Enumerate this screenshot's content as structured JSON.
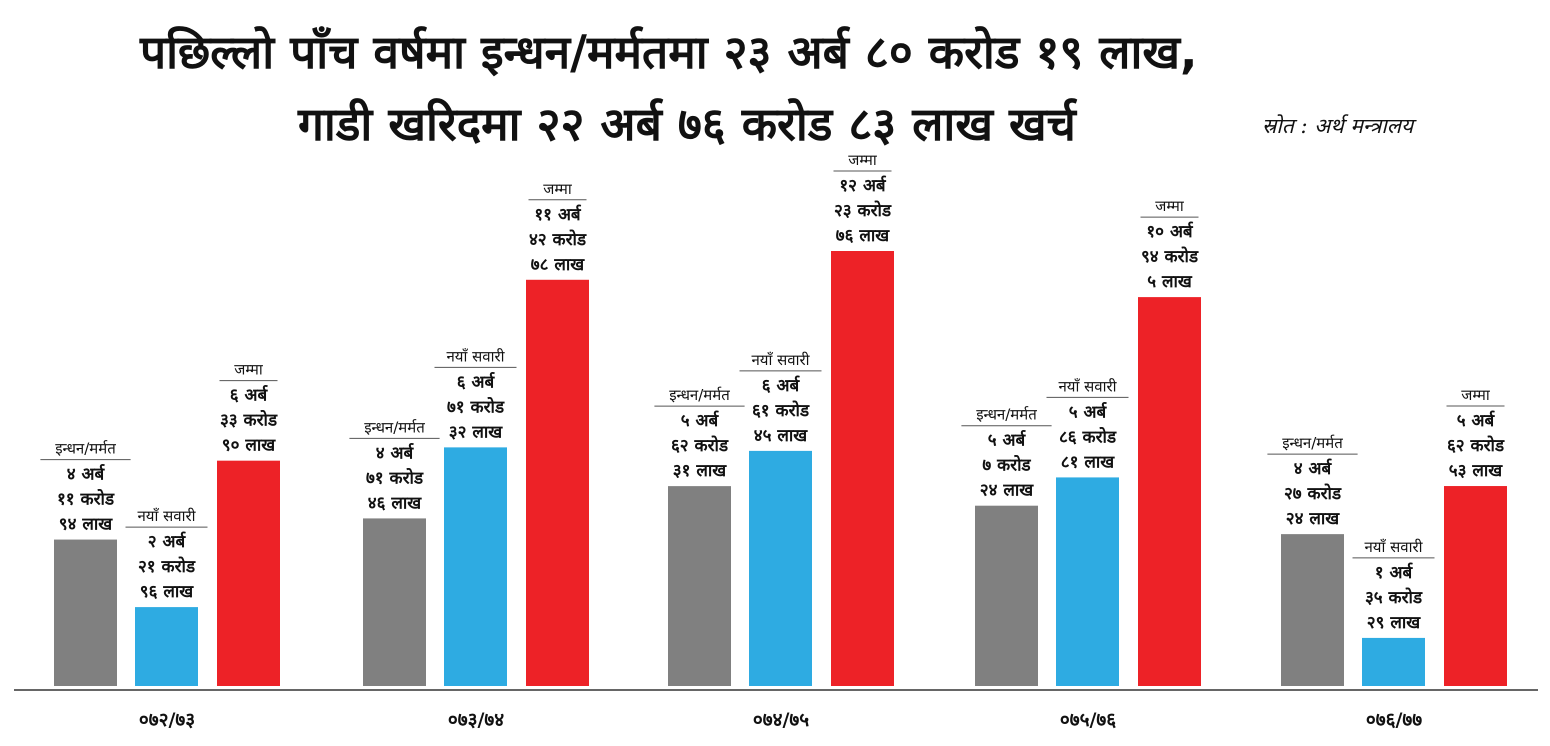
{
  "header": {
    "title_line1": "पछिल्लो पाँच वर्षमा इन्धन/मर्मतमा २३ अर्ब ८० करोड १९ लाख,",
    "title_line2": "गाडी खरिदमा २२ अर्ब ७६ करोड ८३ लाख खर्च",
    "source": "स्रोत : अर्थ मन्त्रालय"
  },
  "chart_data": {
    "type": "bar",
    "title": "पछिल्लो पाँच वर्षमा इन्धन/मर्मतमा २३ अर्ब ८० करोड १९ लाख, गाडी खरिदमा २२ अर्ब ७६ करोड ८३ लाख खर्च",
    "unit": "लाख",
    "categories": [
      "०७२/७३",
      "०७३/७४",
      "०७४/७५",
      "०७५/७६",
      "०७६/७७"
    ],
    "series": [
      {
        "name": "इन्धन/मर्मत",
        "color": "#808080",
        "values": [
          41194,
          47146,
          56231,
          50724,
          42724
        ],
        "labels": [
          [
            "४ अर्ब",
            "११ करोड",
            "९४ लाख"
          ],
          [
            "४ अर्ब",
            "७१ करोड",
            "४६ लाख"
          ],
          [
            "५ अर्ब",
            "६२ करोड",
            "३१ लाख"
          ],
          [
            "५ अर्ब",
            "७ करोड",
            "२४ लाख"
          ],
          [
            "४ अर्ब",
            "२७ करोड",
            "२४ लाख"
          ]
        ]
      },
      {
        "name": "नयाँ सवारी",
        "color": "#2eabe2",
        "values": [
          22196,
          67132,
          66145,
          58681,
          13529
        ],
        "labels": [
          [
            "२ अर्ब",
            "२१ करोड",
            "९६ लाख"
          ],
          [
            "६ अर्ब",
            "७१ करोड",
            "३२ लाख"
          ],
          [
            "६ अर्ब",
            "६१ करोड",
            "४५ लाख"
          ],
          [
            "५ अर्ब",
            "८६ करोड",
            "८१ लाख"
          ],
          [
            "१ अर्ब",
            "३५ करोड",
            "२९ लाख"
          ]
        ]
      },
      {
        "name": "जम्मा",
        "color": "#ed2227",
        "values": [
          63390,
          114278,
          122376,
          109405,
          56253
        ],
        "labels": [
          [
            "६ अर्ब",
            "३३ करोड",
            "९० लाख"
          ],
          [
            "११ अर्ब",
            "४२ करोड",
            "७८ लाख"
          ],
          [
            "१२ अर्ब",
            "२३ करोड",
            "७६ लाख"
          ],
          [
            "१० अर्ब",
            "९४ करोड",
            "५ लाख"
          ],
          [
            "५ अर्ब",
            "६२ करोड",
            "५३ लाख"
          ]
        ]
      }
    ],
    "grid": false,
    "legend": "none"
  }
}
